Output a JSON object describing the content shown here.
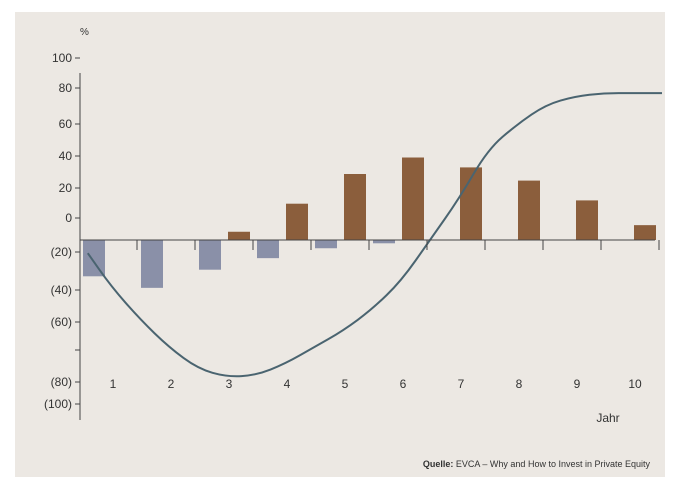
{
  "chart_data": {
    "type": "bar",
    "y_unit_label": "%",
    "xlabel": "Jahr",
    "categories": [
      "1",
      "2",
      "3",
      "4",
      "5",
      "6",
      "7",
      "8",
      "9",
      "10"
    ],
    "y_ticks": [
      100,
      80,
      60,
      40,
      20,
      0,
      -20,
      -40,
      -60,
      -80,
      -100
    ],
    "y_tick_labels": [
      "100",
      "80",
      "60",
      "40",
      "20",
      "0",
      "(20)",
      "(40)",
      "(60)",
      "(80)",
      "(100)"
    ],
    "ylim": [
      -100,
      100
    ],
    "grid": false,
    "series": [
      {
        "kind": "bar",
        "color": "#8a90a8",
        "values": [
          -22,
          -29,
          -18,
          -11,
          -5,
          -2,
          0,
          0,
          0,
          0
        ],
        "position": "left"
      },
      {
        "kind": "bar",
        "color": "#8b5e3c",
        "values": [
          0,
          0,
          5,
          22,
          40,
          50,
          44,
          36,
          24,
          9
        ],
        "position": "right"
      },
      {
        "kind": "line",
        "color": "#4a6470",
        "x": [
          0.1,
          0.5,
          1.0,
          1.5,
          2.0,
          2.5,
          3.0,
          3.5,
          4.0,
          4.5,
          5.0,
          5.5,
          6.0,
          6.5,
          7.0,
          7.5,
          8.0,
          8.5,
          9.0,
          9.5,
          10.0
        ],
        "values": [
          -8,
          -28,
          -48,
          -65,
          -78,
          -83,
          -82,
          -75,
          -65,
          -55,
          -42,
          -25,
          0,
          25,
          55,
          70,
          82,
          87,
          89,
          89,
          89
        ]
      }
    ],
    "source": {
      "label": "Quelle:",
      "text": "EVCA – Why and How to Invest in Private Equity"
    }
  }
}
